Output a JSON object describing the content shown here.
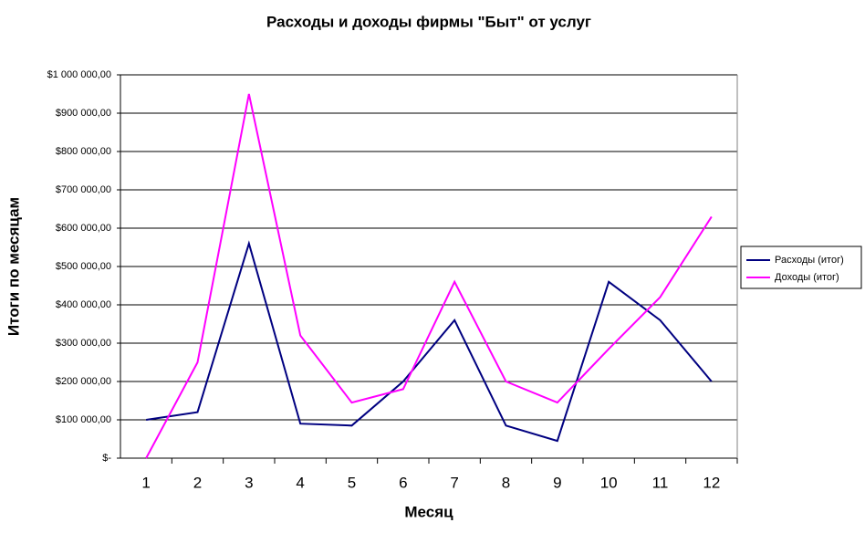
{
  "chart_data": {
    "type": "line",
    "title": "Расходы и доходы фирмы \"Быт\" от услуг",
    "x_label": "Месяц",
    "y_label": "Итоги по месяцам",
    "categories": [
      "1",
      "2",
      "3",
      "4",
      "5",
      "6",
      "7",
      "8",
      "9",
      "10",
      "11",
      "12"
    ],
    "series": [
      {
        "name": "Расходы (итог)",
        "color": "#000080",
        "values": [
          100000,
          120000,
          560000,
          90000,
          85000,
          200000,
          360000,
          85000,
          45000,
          460000,
          360000,
          200000
        ]
      },
      {
        "name": "Доходы (итог)",
        "color": "#ff00ff",
        "values": [
          0,
          250000,
          950000,
          320000,
          145000,
          180000,
          460000,
          200000,
          145000,
          285000,
          420000,
          630000
        ]
      }
    ],
    "ylim": [
      0,
      1000000
    ],
    "yticks": [
      {
        "value": 0,
        "label": "$-"
      },
      {
        "value": 100000,
        "label": "$100 000,00"
      },
      {
        "value": 200000,
        "label": "$200 000,00"
      },
      {
        "value": 300000,
        "label": "$300 000,00"
      },
      {
        "value": 400000,
        "label": "$400 000,00"
      },
      {
        "value": 500000,
        "label": "$500 000,00"
      },
      {
        "value": 600000,
        "label": "$600 000,00"
      },
      {
        "value": 700000,
        "label": "$700 000,00"
      },
      {
        "value": 800000,
        "label": "$800 000,00"
      },
      {
        "value": 900000,
        "label": "$900 000,00"
      },
      {
        "value": 1000000,
        "label": "$1 000 000,00"
      }
    ],
    "grid": true,
    "legend": "right"
  }
}
